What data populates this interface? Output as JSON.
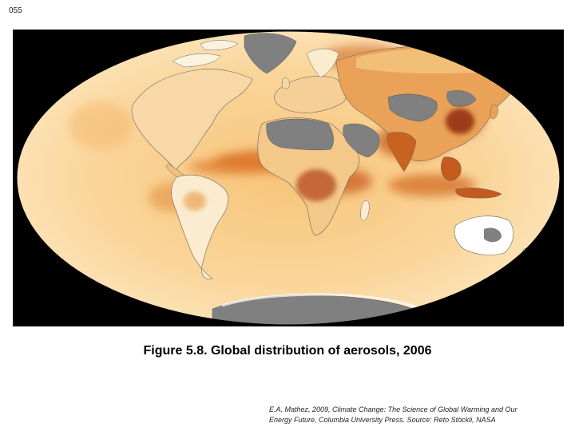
{
  "slide": {
    "number": "055"
  },
  "map": {
    "projection": "Mollweide",
    "variable": "aerosol optical thickness",
    "colors": {
      "background": "#000000",
      "ocean_low": "#fde9c2",
      "ocean_mid": "#f7c880",
      "high": "#d0601c",
      "very_high": "#9a2e0c",
      "clean_land": "#ffffff",
      "no_data": "#808080"
    }
  },
  "caption": {
    "text": "Figure 5.8.  Global distribution of aerosols, 2006"
  },
  "credit": {
    "line1": "E.A. Mathez, 2009, Climate Change: The Science of Global Warming and Our",
    "line2": "Energy Future, Columbia University Press.  Source: Reto Stöckli, NASA"
  }
}
